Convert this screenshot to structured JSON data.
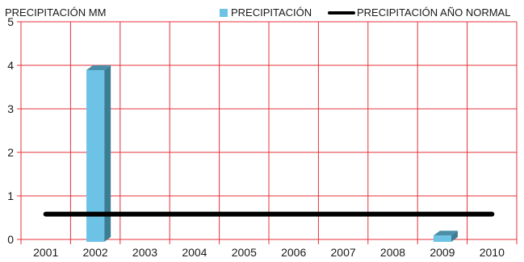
{
  "chart_data": {
    "type": "bar",
    "ylabel": "PRECIPITACIÓN MM",
    "categories": [
      "2001",
      "2002",
      "2003",
      "2004",
      "2005",
      "2006",
      "2007",
      "2008",
      "2009",
      "2010"
    ],
    "series": [
      {
        "name": "PRECIPITACIÓN",
        "kind": "bar",
        "color": "#6cc3e6",
        "values": [
          0,
          4.0,
          0,
          0,
          0,
          0,
          0,
          0,
          0.2,
          0
        ]
      },
      {
        "name": "PRECIPITACIÓN AÑO NORMAL",
        "kind": "line",
        "color": "#000000",
        "values": [
          0.58,
          0.58,
          0.58,
          0.58,
          0.58,
          0.58,
          0.58,
          0.58,
          0.58,
          0.58
        ]
      }
    ],
    "ylim": [
      0,
      5
    ],
    "yticks": [
      "0",
      "1",
      "2",
      "3",
      "4",
      "5"
    ],
    "grid": true,
    "grid_color": "#e5303a",
    "legend_position": "top-right"
  }
}
